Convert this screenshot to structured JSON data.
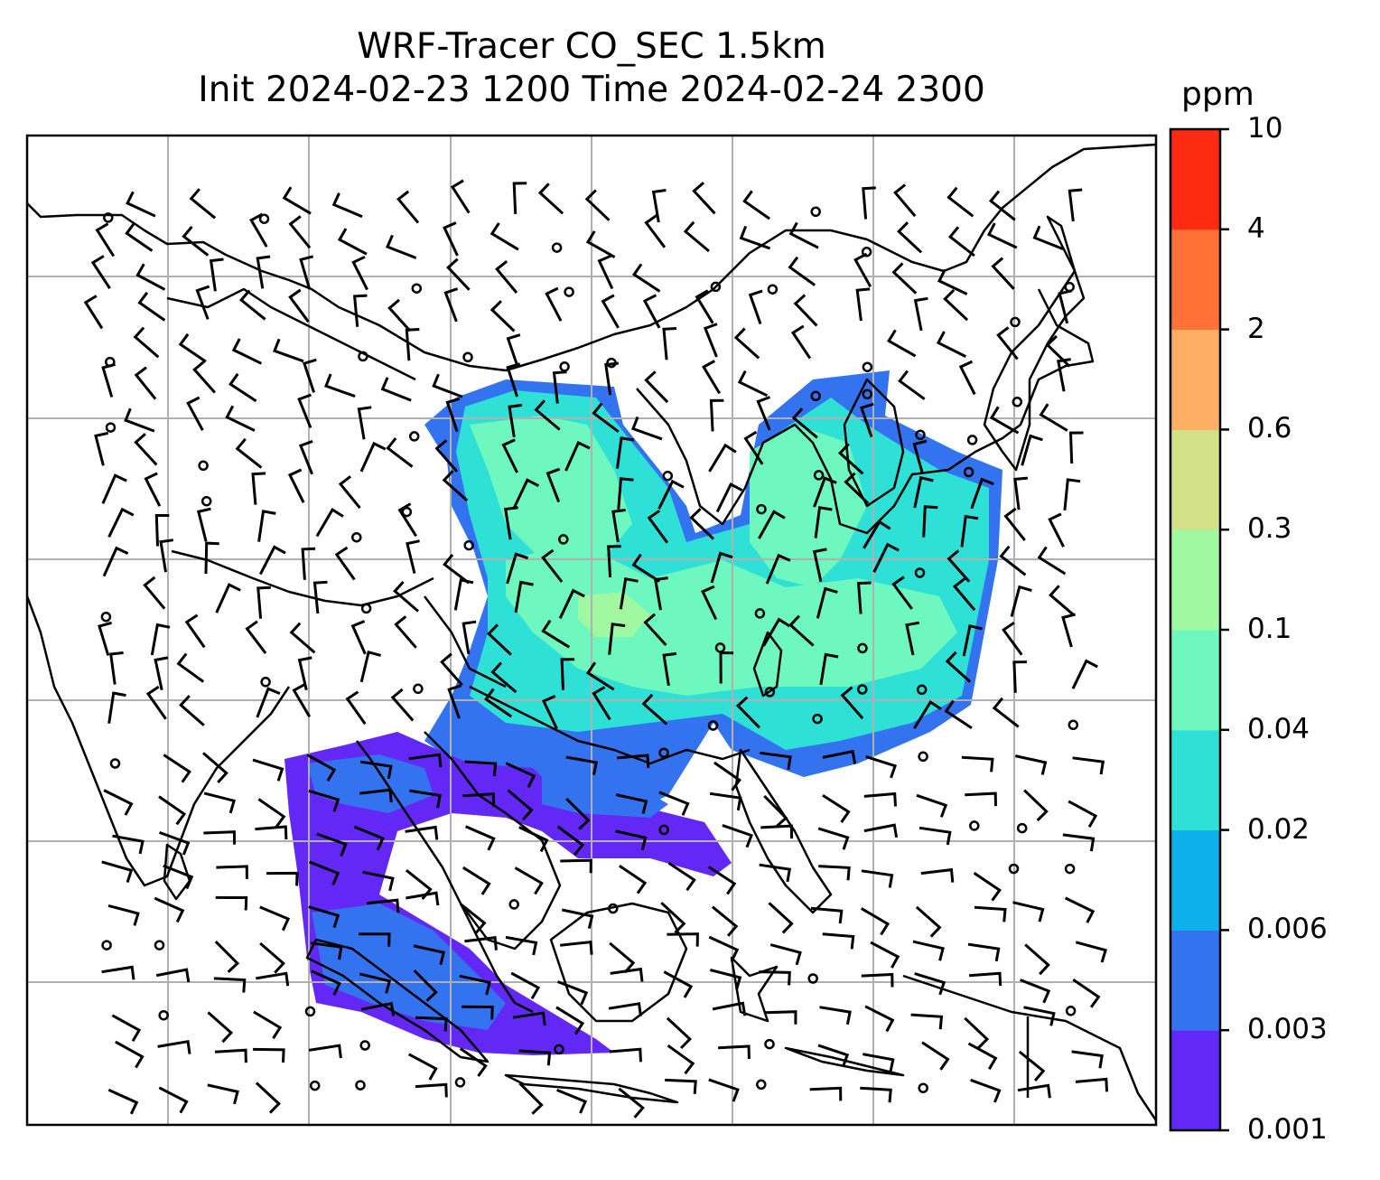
{
  "title": {
    "line1": "WRF-Tracer CO_SEC 1.5km",
    "line2": "Init 2024-02-23 1200 Time 2024-02-24 2300"
  },
  "colorbar": {
    "unit": "ppm",
    "levels": [
      "0.001",
      "0.003",
      "0.006",
      "0.02",
      "0.04",
      "0.1",
      "0.3",
      "0.6",
      "2",
      "4",
      "10"
    ],
    "colors": [
      "#6328f5",
      "#3373f0",
      "#0db0ea",
      "#2ee0d6",
      "#6ef8c0",
      "#a0f8a0",
      "#d2e187",
      "#fdb064",
      "#ff7136",
      "#ff2a12"
    ]
  },
  "map": {
    "gridlines": true,
    "layers": [
      "coastlines",
      "borders",
      "tracer-concentration",
      "wind-barbs"
    ]
  }
}
